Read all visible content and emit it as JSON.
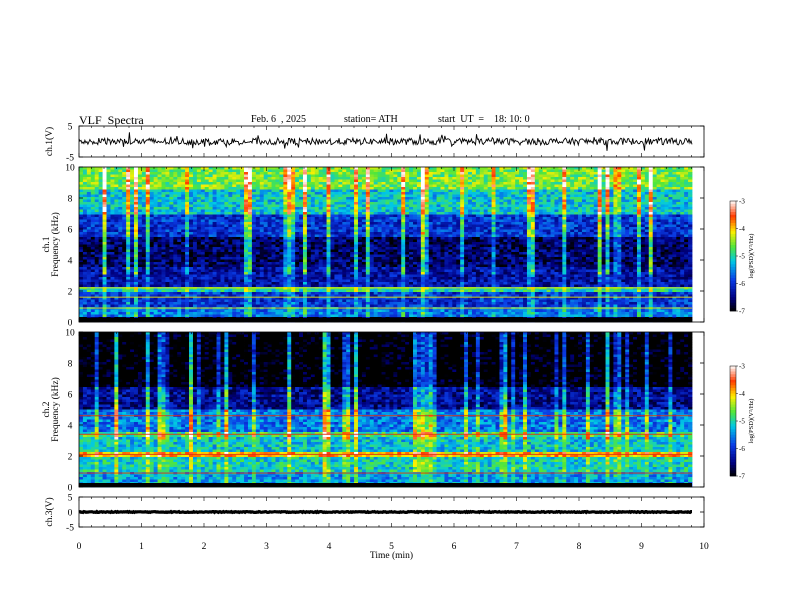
{
  "header": {
    "title": "VLF  Spectra",
    "date": "Feb. 6  , 2025",
    "station": "station= ATH",
    "start_ut": "start  UT  =    18: 10: 0"
  },
  "chart_data": [
    {
      "type": "line",
      "ylabel": "ch.1(V)",
      "yticks": [
        "5",
        "-5"
      ],
      "ylim": [
        -5,
        5
      ],
      "xlim": [
        0,
        10
      ],
      "description_of_values": "noisy waveform centered near 0 V, amplitude about ±1.5 V",
      "series": [
        {
          "values": "dense waveform trace ~0 V"
        }
      ],
      "color": "#000000"
    },
    {
      "type": "heatmap",
      "ylabel": "ch.1\nFrequency  (kHz)",
      "ylabel_line1": "ch.1",
      "ylabel_line2": "Frequency  (kHz)",
      "yticks": [
        "0",
        "2",
        "4",
        "6",
        "8",
        "10"
      ],
      "ylim": [
        0,
        10
      ],
      "xlim": [
        0,
        9.8
      ],
      "colorbar": {
        "label": "log(PSD)(V²/Hz)",
        "ticks": [
          "-3",
          "-4",
          "-5",
          "-6",
          "-7"
        ],
        "range": [
          -7,
          -3
        ]
      },
      "bands": [
        {
          "f": [
            0,
            0.4
          ],
          "level": -7
        },
        {
          "f": [
            0.4,
            1.0
          ],
          "level": -5.6
        },
        {
          "f": [
            1.0,
            2.0
          ],
          "level": -6.0
        },
        {
          "f": [
            2.0,
            2.3
          ],
          "level": -5.0
        },
        {
          "f": [
            2.3,
            3.5
          ],
          "level": -6.3
        },
        {
          "f": [
            3.5,
            5.5
          ],
          "level": -6.6
        },
        {
          "f": [
            5.5,
            7.0
          ],
          "level": -6.0
        },
        {
          "f": [
            7.0,
            8.5
          ],
          "level": -5.2
        },
        {
          "f": [
            8.5,
            10
          ],
          "level": -4.6
        }
      ]
    },
    {
      "type": "heatmap",
      "ylabel_line1": "ch.2",
      "ylabel_line2": "Frequency  (kHz)",
      "yticks": [
        "0",
        "2",
        "4",
        "6",
        "8",
        "10"
      ],
      "ylim": [
        0,
        10
      ],
      "xlim": [
        0,
        9.8
      ],
      "colorbar": {
        "label": "log(PSD)(V²/Hz)",
        "ticks": [
          "-3",
          "-4",
          "-5",
          "-6",
          "-7"
        ],
        "range": [
          -7,
          -3
        ]
      },
      "bands": [
        {
          "f": [
            0,
            1.0
          ],
          "level": -5.4
        },
        {
          "f": [
            1.0,
            2.0
          ],
          "level": -5.1
        },
        {
          "f": [
            2.0,
            2.3
          ],
          "level": -4.0
        },
        {
          "f": [
            2.3,
            3.2
          ],
          "level": -5.2
        },
        {
          "f": [
            3.2,
            3.6
          ],
          "level": -4.8
        },
        {
          "f": [
            3.6,
            5.0
          ],
          "level": -5.6
        },
        {
          "f": [
            5.0,
            6.5
          ],
          "level": -6.4
        },
        {
          "f": [
            6.5,
            10
          ],
          "level": -7.0
        }
      ]
    },
    {
      "type": "line",
      "ylabel": "ch.3(V)",
      "yticks": [
        "5",
        "0",
        "-5"
      ],
      "ylim": [
        -5,
        5
      ],
      "xlim": [
        0,
        10
      ],
      "series": [
        {
          "values": "flat trace ~0 V"
        }
      ],
      "color": "#000000"
    }
  ],
  "xaxis": {
    "label": "Time  (min)",
    "ticks": [
      "0",
      "1",
      "2",
      "3",
      "4",
      "5",
      "6",
      "7",
      "8",
      "9",
      "10"
    ],
    "xlim": [
      0,
      10
    ]
  }
}
